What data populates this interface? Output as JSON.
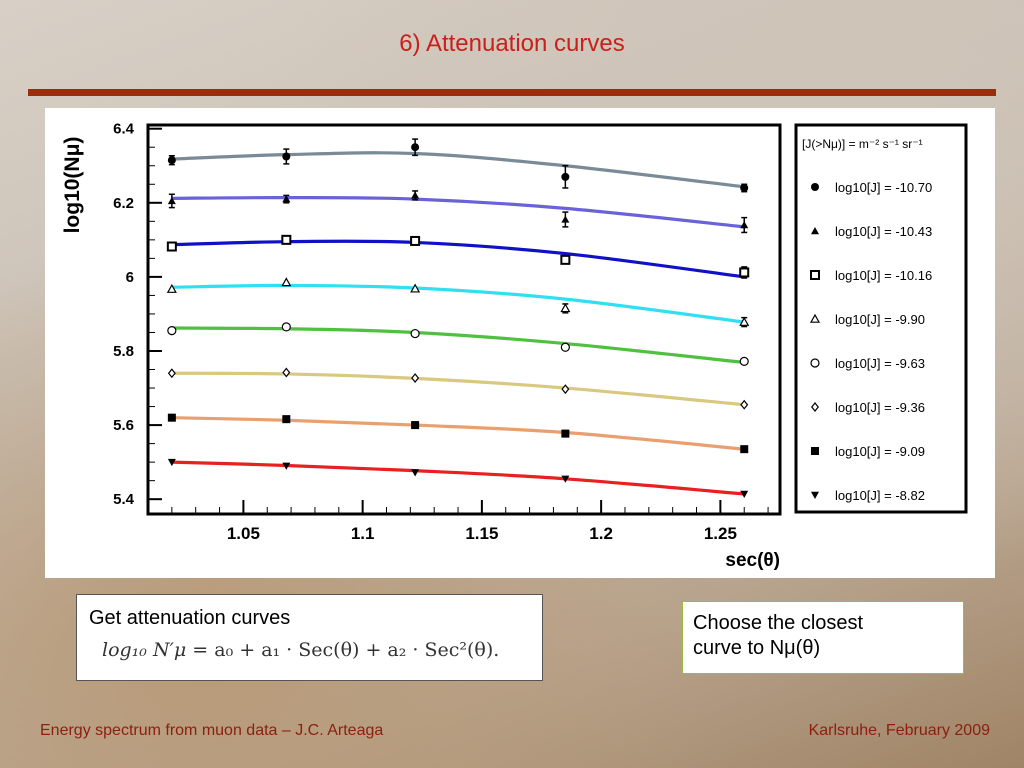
{
  "slide": {
    "title": "6) Attenuation curves",
    "footer_left": "Energy spectrum from muon data – J.C. Arteaga",
    "footer_right": "Karlsruhe,  February 2009",
    "colors": {
      "title": "#c8201a",
      "rule": "#9a2e0a",
      "footer": "#8c1f0e"
    }
  },
  "box_left": {
    "label": "Get attenuation curves",
    "formula_lhs": "log₁₀ N′μ",
    "formula_rhs": "= a₀ + a₁ · Sec(θ) + a₂ · Sec²(θ)."
  },
  "box_right": {
    "line1": "Choose the closest",
    "line2": "curve to  Nμ(θ)"
  },
  "chart_data": {
    "type": "scatter",
    "xlabel": "sec(θ)",
    "ylabel": "log10(Nμ)",
    "xlim": [
      1.01,
      1.275
    ],
    "ylim": [
      5.36,
      6.41
    ],
    "xticks": [
      1.05,
      1.1,
      1.15,
      1.2,
      1.25
    ],
    "xtick_labels": [
      "1.05",
      "1.1",
      "1.15",
      "1.2",
      "1.25"
    ],
    "yticks": [
      5.4,
      5.6,
      5.8,
      6.0,
      6.2,
      6.4
    ],
    "ytick_labels": [
      "5.4",
      "5.6",
      "5.8",
      "6",
      "6.2",
      "6.4"
    ],
    "x": [
      1.02,
      1.068,
      1.122,
      1.185,
      1.26
    ],
    "legend_header": "[J(>Nμ)] = m⁻² s⁻¹ sr⁻¹",
    "legend_position": "right",
    "series": [
      {
        "name": "log10[J] = -10.70",
        "marker": "filled-circle",
        "color": "#7a8a96",
        "values": [
          6.315,
          6.325,
          6.35,
          6.27,
          6.24
        ],
        "errors": [
          0.012,
          0.02,
          0.022,
          0.03,
          0.01
        ],
        "fit": [
          6.318,
          6.33,
          6.333,
          6.3,
          6.243
        ]
      },
      {
        "name": "log10[J] = -10.43",
        "marker": "filled-triangle",
        "color": "#6a62d8",
        "values": [
          6.205,
          6.21,
          6.22,
          6.155,
          6.14
        ],
        "errors": [
          0.018,
          0.01,
          0.012,
          0.02,
          0.02
        ],
        "fit": [
          6.212,
          6.214,
          6.21,
          6.185,
          6.135
        ]
      },
      {
        "name": "log10[J] = -10.16",
        "marker": "open-square",
        "color": "#1010c8",
        "values": [
          6.082,
          6.1,
          6.097,
          6.046,
          6.012
        ],
        "errors": [
          0.0,
          0.0,
          0.0,
          0.0,
          0.015
        ],
        "fit": [
          6.087,
          6.095,
          6.093,
          6.063,
          6.0
        ]
      },
      {
        "name": "log10[J] = -9.90",
        "marker": "open-triangle",
        "color": "#30e0f0",
        "values": [
          5.967,
          5.985,
          5.968,
          5.915,
          5.878
        ],
        "errors": [
          0.0,
          0.0,
          0.0,
          0.012,
          0.012
        ],
        "fit": [
          5.972,
          5.977,
          5.97,
          5.94,
          5.878
        ]
      },
      {
        "name": "log10[J] = -9.63",
        "marker": "open-circle",
        "color": "#50c040",
        "values": [
          5.855,
          5.865,
          5.847,
          5.81,
          5.772
        ],
        "errors": [
          0.0,
          0.0,
          0.0,
          0.0,
          0.0
        ],
        "fit": [
          5.862,
          5.86,
          5.85,
          5.82,
          5.769
        ]
      },
      {
        "name": "log10[J] = -9.36",
        "marker": "open-diamond",
        "color": "#d8c880",
        "values": [
          5.74,
          5.742,
          5.727,
          5.697,
          5.655
        ],
        "errors": [
          0.0,
          0.0,
          0.0,
          0.0,
          0.0
        ],
        "fit": [
          5.74,
          5.738,
          5.726,
          5.7,
          5.655
        ]
      },
      {
        "name": "log10[J] = -9.09",
        "marker": "filled-square",
        "color": "#e8a070",
        "values": [
          5.62,
          5.616,
          5.6,
          5.577,
          5.535
        ],
        "errors": [
          0.008,
          0.008,
          0.008,
          0.008,
          0.0
        ],
        "fit": [
          5.62,
          5.613,
          5.6,
          5.58,
          5.535
        ]
      },
      {
        "name": "log10[J] = -8.82",
        "marker": "filled-down-triangle",
        "color": "#e82020",
        "values": [
          5.5,
          5.49,
          5.472,
          5.455,
          5.414
        ],
        "errors": [
          0.0,
          0.0,
          0.0,
          0.0,
          0.0
        ],
        "fit": [
          5.5,
          5.491,
          5.477,
          5.455,
          5.414
        ]
      }
    ]
  }
}
